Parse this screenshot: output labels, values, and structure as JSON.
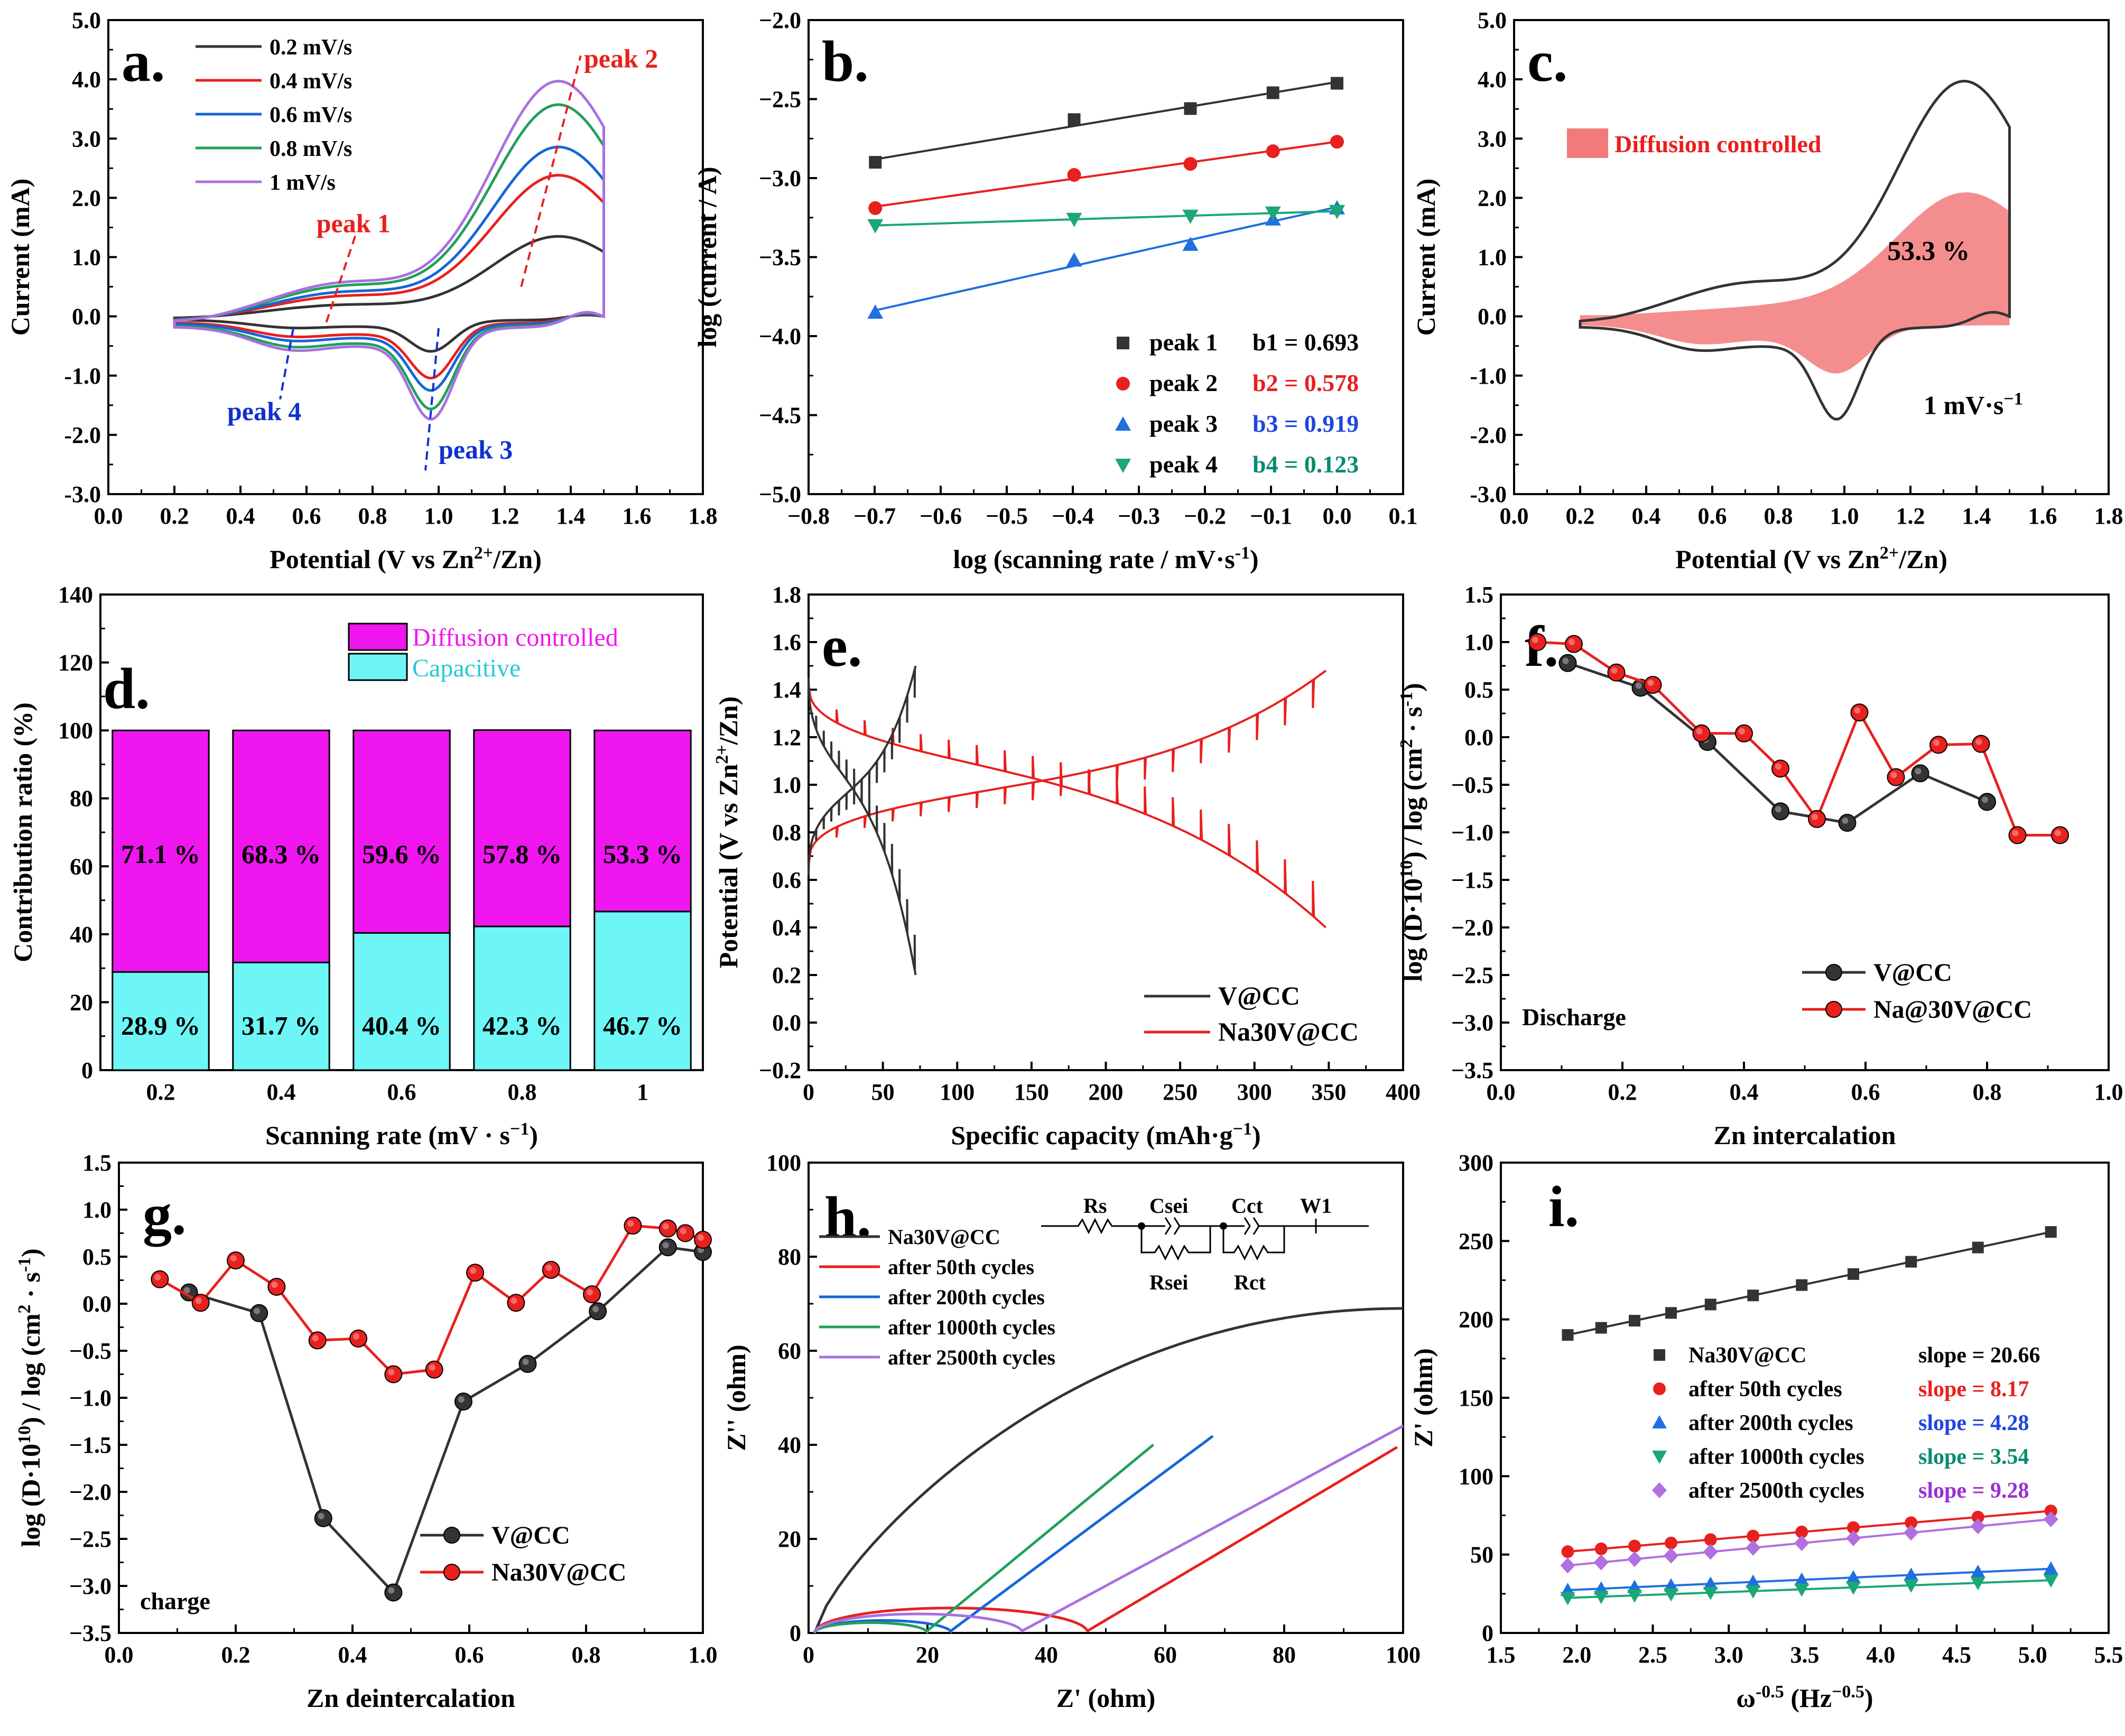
{
  "figure_title": "",
  "chart_data": [
    {
      "id": "a",
      "type": "line",
      "panel_label": "a.",
      "xlabel": "Potential (V vs Zn",
      "xlabel_sup": "2+",
      "xlabel_tail": "/Zn)",
      "ylabel": "Current (mA)",
      "xlim": [
        0.0,
        1.8
      ],
      "ylim": [
        -3.0,
        5.0
      ],
      "xticks": [
        "0.0",
        "0.2",
        "0.4",
        "0.6",
        "0.8",
        "1.0",
        "1.2",
        "1.4",
        "1.6",
        "1.8"
      ],
      "yticks": [
        "-3.0",
        "-2.0",
        "-1.0",
        "0.0",
        "1.0",
        "2.0",
        "3.0",
        "4.0",
        "5.0"
      ],
      "legend_position": "top-left",
      "series": [
        {
          "name": "0.2 mV/s",
          "color": "#333333",
          "scale": 0.34
        },
        {
          "name": "0.4 mV/s",
          "color": "#e8201e",
          "scale": 0.6
        },
        {
          "name": "0.6 mV/s",
          "color": "#1565d8",
          "scale": 0.72
        },
        {
          "name": "0.8 mV/s",
          "color": "#21a05a",
          "scale": 0.9
        },
        {
          "name": "1 mV/s",
          "color": "#a970e0",
          "scale": 1.0
        }
      ],
      "peaks": [
        {
          "label": "peak 1",
          "color": "#e8201e",
          "x": 0.7
        },
        {
          "label": "peak 2",
          "color": "#e8201e",
          "x": 1.35
        },
        {
          "label": "peak 3",
          "color": "#1030d0",
          "x": 0.98
        },
        {
          "label": "peak 4",
          "color": "#1030d0",
          "x": 0.53
        }
      ]
    },
    {
      "id": "b",
      "type": "scatter",
      "panel_label": "b.",
      "xlabel": "log (scanning rate / mV·s",
      "xlabel_sup": "-1",
      "xlabel_tail": ")",
      "ylabel": "log (current / A)",
      "xlim": [
        -0.8,
        0.1
      ],
      "ylim": [
        -5.0,
        -2.0
      ],
      "xticks": [
        "−0.8",
        "−0.7",
        "−0.6",
        "−0.5",
        "−0.4",
        "−0.3",
        "−0.2",
        "−0.1",
        "0.0",
        "0.1"
      ],
      "yticks": [
        "−5.0",
        "−4.5",
        "−4.0",
        "−3.5",
        "−3.0",
        "−2.5",
        "−2.0"
      ],
      "x": [
        -0.699,
        -0.398,
        -0.222,
        -0.097,
        0.0
      ],
      "legend_position": "bottom-right",
      "series": [
        {
          "name": "peak 1",
          "bname": "b1 = 0.693",
          "color": "#333333",
          "bcolor": "#000000",
          "marker": "square",
          "values": [
            -2.9,
            -2.63,
            -2.56,
            -2.46,
            -2.4
          ]
        },
        {
          "name": "peak 2",
          "bname": "b2 = 0.578",
          "color": "#e8201e",
          "bcolor": "#e8201e",
          "marker": "circle",
          "values": [
            -3.19,
            -2.98,
            -2.91,
            -2.83,
            -2.77
          ]
        },
        {
          "name": "peak 3",
          "bname": "b3 = 0.919",
          "color": "#1f6fe0",
          "bcolor": "#1f45e0",
          "marker": "triangle-up",
          "values": [
            -3.85,
            -3.52,
            -3.42,
            -3.26,
            -3.19
          ]
        },
        {
          "name": "peak 4",
          "bname": "b4 = 0.123",
          "color": "#1aa876",
          "bcolor": "#0a8a70",
          "marker": "triangle-down",
          "values": [
            -3.3,
            -3.26,
            -3.24,
            -3.22,
            -3.21
          ]
        }
      ]
    },
    {
      "id": "c",
      "type": "area",
      "panel_label": "c.",
      "xlabel": "Potential (V vs Zn",
      "xlabel_sup": "2+",
      "xlabel_tail": "/Zn)",
      "ylabel": "Current (mA)",
      "xlim": [
        0.0,
        1.8
      ],
      "ylim": [
        -3.0,
        5.0
      ],
      "xticks": [
        "0.0",
        "0.2",
        "0.4",
        "0.6",
        "0.8",
        "1.0",
        "1.2",
        "1.4",
        "1.6",
        "1.8"
      ],
      "yticks": [
        "-3.0",
        "-2.0",
        "-1.0",
        "0.0",
        "1.0",
        "2.0",
        "3.0",
        "4.0",
        "5.0"
      ],
      "legend": "Diffusion controlled",
      "legend_color": "#f27a7a",
      "percent_label": "53.3 %",
      "rate_label": "1 mV·s",
      "rate_sup": "−1"
    },
    {
      "id": "d",
      "type": "bar",
      "panel_label": "d.",
      "xlabel": "Scanning rate (mV · s",
      "xlabel_sup": "−1",
      "xlabel_tail": ")",
      "ylabel": "Contribution ratio (%)",
      "ylim": [
        0,
        140
      ],
      "yticks": [
        "0",
        "20",
        "40",
        "60",
        "80",
        "100",
        "120",
        "140"
      ],
      "categories": [
        "0.2",
        "0.4",
        "0.6",
        "0.8",
        "1"
      ],
      "legend_position": "top-right",
      "series": [
        {
          "name": "Capacitive",
          "color": "#6ef6f6",
          "text_color": "#27c9d8",
          "values": [
            28.9,
            31.7,
            40.4,
            42.3,
            46.7
          ],
          "labels": [
            "28.9 %",
            "31.7 %",
            "40.4 %",
            "42.3 %",
            "46.7 %"
          ]
        },
        {
          "name": "Diffusion controlled",
          "color": "#f016f0",
          "text_color": "#f016f0",
          "values": [
            71.1,
            68.3,
            59.6,
            57.8,
            53.3
          ],
          "labels": [
            "71.1 %",
            "68.3 %",
            "59.6 %",
            "57.8 %",
            "53.3 %"
          ]
        }
      ]
    },
    {
      "id": "e",
      "type": "line",
      "panel_label": "e.",
      "xlabel": "Specific capacity (mAh·g",
      "xlabel_sup": "−1",
      "xlabel_tail": ")",
      "ylabel": "Potential (V vs Zn",
      "ylabel_sup": "2+",
      "ylabel_tail": "/Zn)",
      "xlim": [
        0,
        400
      ],
      "ylim": [
        -0.2,
        1.8
      ],
      "xticks": [
        "0",
        "50",
        "100",
        "150",
        "200",
        "250",
        "300",
        "350",
        "400"
      ],
      "yticks": [
        "−0.2",
        "0.0",
        "0.2",
        "0.4",
        "0.6",
        "0.8",
        "1.0",
        "1.2",
        "1.4",
        "1.6",
        "1.8"
      ],
      "legend_position": "bottom-right",
      "series": [
        {
          "name": "V@CC",
          "color": "#333333",
          "capacity": 72
        },
        {
          "name": "Na30V@CC",
          "color": "#e8201e",
          "capacity": 348
        }
      ]
    },
    {
      "id": "f",
      "type": "line",
      "panel_label": "f.",
      "xlabel": "Zn intercalation",
      "ylabel": "log (D·10",
      "ylabel_sup": "10",
      "ylabel_tail": ") / log (cm",
      "ylabel_sup2": "2",
      "ylabel_tail2": " · s",
      "ylabel_sup3": "-1",
      "ylabel_tail3": ")",
      "xlim": [
        0.0,
        1.0
      ],
      "ylim": [
        -3.5,
        1.5
      ],
      "xticks": [
        "0.0",
        "0.2",
        "0.4",
        "0.6",
        "0.8",
        "1.0"
      ],
      "yticks": [
        "−3.5",
        "−3.0",
        "−2.5",
        "−2.0",
        "−1.5",
        "−1.0",
        "−0.5",
        "0.0",
        "0.5",
        "1.0",
        "1.5"
      ],
      "annotation": "Discharge",
      "legend_position": "bottom-right",
      "series": [
        {
          "name": "V@CC",
          "color": "#333333",
          "x": [
            0.11,
            0.23,
            0.34,
            0.46,
            0.57,
            0.69,
            0.8
          ],
          "values": [
            0.78,
            0.52,
            -0.05,
            -0.78,
            -0.9,
            -0.38,
            -0.68
          ]
        },
        {
          "name": "Na@30V@CC",
          "color": "#e8201e",
          "x": [
            0.06,
            0.12,
            0.19,
            0.25,
            0.33,
            0.4,
            0.46,
            0.52,
            0.59,
            0.65,
            0.72,
            0.79,
            0.85,
            0.92
          ],
          "values": [
            1.0,
            0.98,
            0.68,
            0.55,
            0.04,
            0.04,
            -0.33,
            -0.86,
            0.26,
            -0.42,
            -0.08,
            -0.07,
            -1.03,
            -1.03
          ]
        }
      ]
    },
    {
      "id": "g",
      "type": "line",
      "panel_label": "g.",
      "xlabel": "Zn deintercalation",
      "ylabel": "log (D·10",
      "ylabel_sup": "10",
      "ylabel_tail": ") / log (cm",
      "ylabel_sup2": "2",
      "ylabel_tail2": " · s",
      "ylabel_sup3": "-1",
      "ylabel_tail3": ")",
      "xlim": [
        0.0,
        1.0
      ],
      "ylim": [
        -3.5,
        1.5
      ],
      "xticks": [
        "0.0",
        "0.2",
        "0.4",
        "0.6",
        "0.8",
        "1.0"
      ],
      "yticks": [
        "−3.5",
        "−3.0",
        "−2.5",
        "−2.0",
        "−1.5",
        "−1.0",
        "−0.5",
        "0.0",
        "0.5",
        "1.0",
        "1.5"
      ],
      "annotation": "charge",
      "legend_position": "bottom-right",
      "series": [
        {
          "name": "V@CC",
          "color": "#333333",
          "x": [
            0.12,
            0.24,
            0.35,
            0.47,
            0.59,
            0.7,
            0.82,
            0.94,
            1.0
          ],
          "values": [
            0.12,
            -0.1,
            -2.28,
            -3.07,
            -1.04,
            -0.64,
            -0.08,
            0.6,
            0.55
          ]
        },
        {
          "name": "Na30V@CC",
          "color": "#e8201e",
          "x": [
            0.07,
            0.14,
            0.2,
            0.27,
            0.34,
            0.41,
            0.47,
            0.54,
            0.61,
            0.68,
            0.74,
            0.81,
            0.88,
            0.94,
            0.97,
            1.0
          ],
          "values": [
            0.26,
            0.01,
            0.46,
            0.18,
            -0.39,
            -0.37,
            -0.75,
            -0.7,
            0.33,
            0.01,
            0.36,
            0.1,
            0.83,
            0.8,
            0.75,
            0.68
          ]
        }
      ]
    },
    {
      "id": "h",
      "type": "line",
      "panel_label": "h.",
      "xlabel": "Z' (ohm)",
      "ylabel": "Z'' (ohm)",
      "xlim": [
        0,
        100
      ],
      "ylim": [
        0,
        100
      ],
      "xticks": [
        "0",
        "20",
        "40",
        "60",
        "80",
        "100"
      ],
      "yticks": [
        "0",
        "20",
        "40",
        "60",
        "80",
        "100"
      ],
      "circuit_labels": [
        "Rs",
        "Csei",
        "Cct",
        "W1",
        "Rsei",
        "Rct"
      ],
      "legend_position": "top-left",
      "series": [
        {
          "name": "Na30V@CC",
          "color": "#333333"
        },
        {
          "name": "after 50th cycles",
          "color": "#e8201e"
        },
        {
          "name": "after 200th cycles",
          "color": "#1565d8"
        },
        {
          "name": "after 1000th cycles",
          "color": "#21a05a"
        },
        {
          "name": "after 2500th cycles",
          "color": "#a970e0"
        }
      ]
    },
    {
      "id": "i",
      "type": "scatter",
      "panel_label": "i.",
      "xlabel": "ω",
      "xlabel_sup": "-0.5",
      "xlabel_tail": " (Hz",
      "xlabel_sup2": "−0.5",
      "xlabel_tail2": ")",
      "ylabel": "Z' (ohm)",
      "xlim": [
        1.5,
        5.5
      ],
      "ylim": [
        0,
        300
      ],
      "xticks": [
        "1.5",
        "2.0",
        "2.5",
        "3.0",
        "3.5",
        "4.0",
        "4.5",
        "5.0",
        "5.5"
      ],
      "yticks": [
        "0",
        "50",
        "100",
        "150",
        "200",
        "250",
        "300"
      ],
      "x": [
        1.94,
        2.16,
        2.38,
        2.62,
        2.88,
        3.16,
        3.48,
        3.82,
        4.2,
        4.64,
        5.12
      ],
      "legend_position": "middle",
      "series": [
        {
          "name": "Na30V@CC",
          "slope_label": "slope = 20.66",
          "color": "#333333",
          "slope_color": "#000000",
          "marker": "square",
          "intercept": 150,
          "slope": 20.66
        },
        {
          "name": "after 50th cycles",
          "slope_label": "slope = 8.17",
          "color": "#e8201e",
          "slope_color": "#e8201e",
          "marker": "circle",
          "intercept": 36,
          "slope": 8.17
        },
        {
          "name": "after 200th cycles",
          "slope_label": "slope = 4.28",
          "color": "#1f6fe0",
          "slope_color": "#1f45e0",
          "marker": "triangle-up",
          "intercept": 19,
          "slope": 4.28
        },
        {
          "name": "after 1000th cycles",
          "slope_label": "slope = 3.54",
          "color": "#1aa876",
          "slope_color": "#0a8a70",
          "marker": "triangle-down",
          "intercept": 15.5,
          "slope": 3.54
        },
        {
          "name": "after 2500th cycles",
          "slope_label": "slope = 9.28",
          "color": "#b070e0",
          "slope_color": "#9b30d0",
          "marker": "diamond",
          "intercept": 25,
          "slope": 9.28
        }
      ]
    }
  ]
}
